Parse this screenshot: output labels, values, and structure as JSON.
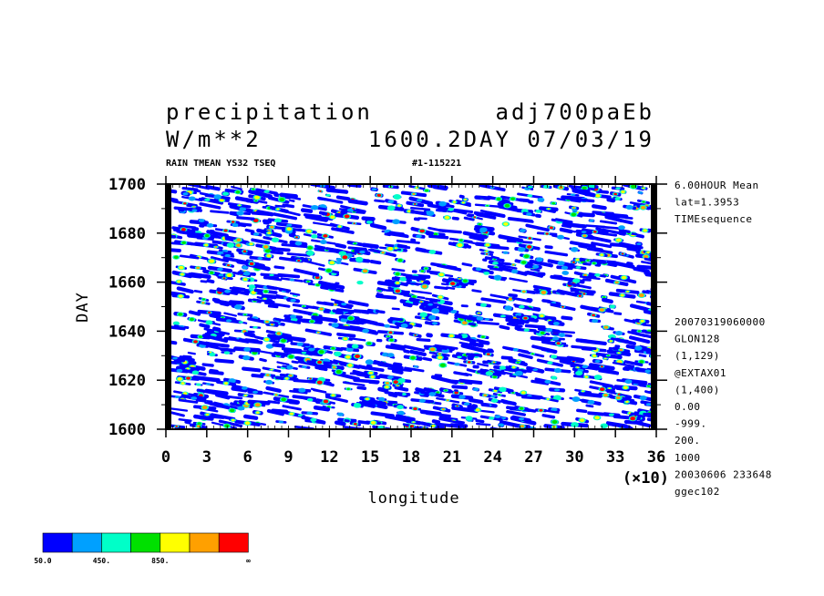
{
  "header": {
    "title_left": "precipitation",
    "title_right": "adj700paEb",
    "subtitle_left": "W/m**2",
    "subtitle_right": "1600.2DAY 07/03/19",
    "small_left": "RAIN TMEAN YS32 TSEQ",
    "small_right": "#1-115221"
  },
  "side_info_top": [
    "6.00HOUR Mean",
    "lat=1.3953",
    "TIMEsequence"
  ],
  "side_info_bottom": [
    "20070319060000",
    "GLON128",
    "(1,129)",
    "@EXTAX01",
    "(1,400)",
    "0.00",
    "-999.",
    "200.",
    "1000",
    "20030606 233648",
    "ggec102"
  ],
  "colors": {
    "levels": [
      "#0000ff",
      "#00a0ff",
      "#00ffc8",
      "#00e000",
      "#ffff00",
      "#ffa000",
      "#ff0000"
    ],
    "axis": "#000000",
    "background": "#ffffff"
  },
  "legend": {
    "labels": [
      "50.0",
      "450.",
      "850.",
      "∞"
    ]
  },
  "chart_data": {
    "type": "heatmap",
    "title": "precipitation",
    "xlabel": "longitude",
    "ylabel": "DAY",
    "x_multiplier_label": "(×10)",
    "xlim": [
      0,
      36
    ],
    "ylim": [
      1600,
      1700
    ],
    "x_ticks": [
      0,
      3,
      6,
      9,
      12,
      15,
      18,
      21,
      24,
      27,
      30,
      33,
      36
    ],
    "y_ticks": [
      1600,
      1620,
      1640,
      1660,
      1680,
      1700
    ],
    "contour_levels": [
      50,
      250,
      450,
      650,
      850,
      1050
    ],
    "units": "W/m**2",
    "x_tick_labels": [
      "0",
      "3",
      "6",
      "9",
      "12",
      "15",
      "18",
      "21",
      "24",
      "27",
      "30",
      "33",
      "36"
    ],
    "y_tick_labels": [
      "1600",
      "1620",
      "1640",
      "1660",
      "1680",
      "1700"
    ]
  }
}
